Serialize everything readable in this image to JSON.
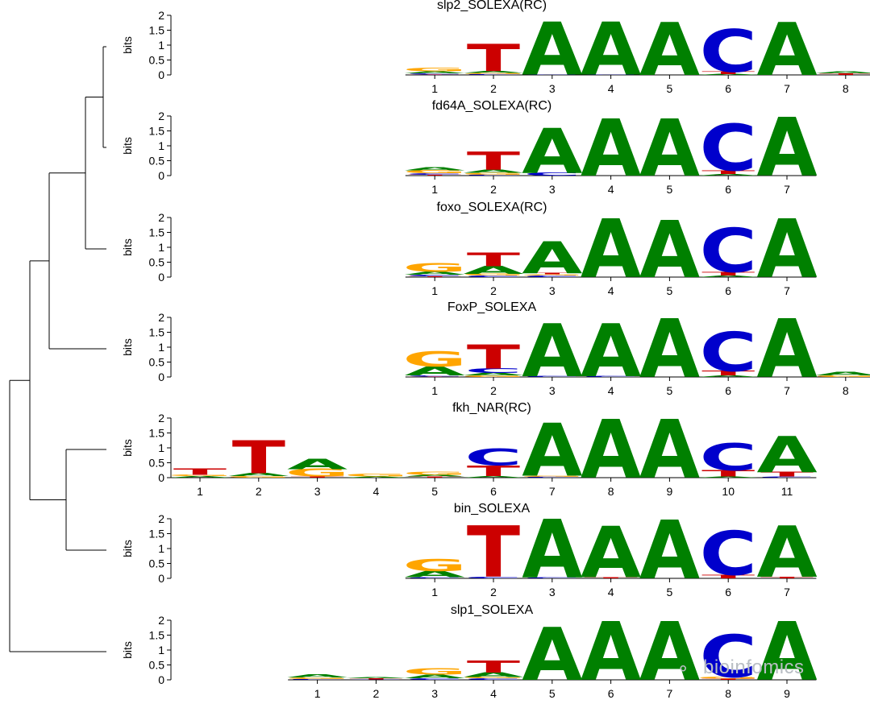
{
  "colors": {
    "A": "#008000",
    "C": "#0000cc",
    "G": "#ffa500",
    "T": "#cc0000"
  },
  "y_axis": {
    "label": "bits",
    "ticks": [
      "0",
      "0.5",
      "1",
      "1.5",
      "2"
    ],
    "range": [
      0,
      2
    ]
  },
  "watermark": {
    "text": "bioinfomics",
    "icon": "wechat-icon"
  },
  "tree": {
    "leaf_order": [
      "slp2_SOLEXA(RC)",
      "fd64A_SOLEXA(RC)",
      "foxo_SOLEXA(RC)",
      "FoxP_SOLEXA",
      "fkh_NAR(RC)",
      "bin_SOLEXA",
      "slp1_SOLEXA"
    ],
    "merges": [
      [
        0,
        1
      ],
      [
        0,
        2
      ],
      [
        0,
        3
      ],
      [
        4,
        5
      ],
      [
        0,
        4
      ],
      [
        0,
        6
      ]
    ]
  },
  "motifs": [
    {
      "name": "slp2_SOLEXA(RC)",
      "offset": 4,
      "positions": [
        {
          "label": "1",
          "letters": [
            [
              "T",
              0.02
            ],
            [
              "C",
              0.04
            ],
            [
              "A",
              0.06
            ],
            [
              "G",
              0.12
            ]
          ]
        },
        {
          "label": "2",
          "letters": [
            [
              "C",
              0.03
            ],
            [
              "G",
              0.04
            ],
            [
              "A",
              0.06
            ],
            [
              "T",
              0.9
            ]
          ]
        },
        {
          "label": "3",
          "letters": [
            [
              "C",
              0.02
            ],
            [
              "A",
              1.75
            ]
          ]
        },
        {
          "label": "4",
          "letters": [
            [
              "C",
              0.02
            ],
            [
              "A",
              1.75
            ]
          ]
        },
        {
          "label": "5",
          "letters": [
            [
              "A",
              1.75
            ]
          ]
        },
        {
          "label": "6",
          "letters": [
            [
              "A",
              0.03
            ],
            [
              "T",
              0.08
            ],
            [
              "C",
              1.4
            ]
          ]
        },
        {
          "label": "7",
          "letters": [
            [
              "A",
              1.75
            ]
          ]
        },
        {
          "label": "8",
          "letters": [
            [
              "T",
              0.05
            ],
            [
              "A",
              0.07
            ]
          ]
        }
      ]
    },
    {
      "name": "fd64A_SOLEXA(RC)",
      "offset": 4,
      "positions": [
        {
          "label": "1",
          "letters": [
            [
              "T",
              0.03
            ],
            [
              "C",
              0.05
            ],
            [
              "G",
              0.1
            ],
            [
              "A",
              0.1
            ]
          ]
        },
        {
          "label": "2",
          "letters": [
            [
              "C",
              0.03
            ],
            [
              "G",
              0.06
            ],
            [
              "A",
              0.1
            ],
            [
              "T",
              0.6
            ]
          ]
        },
        {
          "label": "3",
          "letters": [
            [
              "C",
              0.1
            ],
            [
              "A",
              1.5
            ]
          ]
        },
        {
          "label": "4",
          "letters": [
            [
              "A",
              1.9
            ]
          ]
        },
        {
          "label": "5",
          "letters": [
            [
              "A",
              1.9
            ]
          ]
        },
        {
          "label": "6",
          "letters": [
            [
              "A",
              0.05
            ],
            [
              "T",
              0.12
            ],
            [
              "C",
              1.55
            ]
          ]
        },
        {
          "label": "7",
          "letters": [
            [
              "A",
              1.95
            ]
          ]
        }
      ]
    },
    {
      "name": "foxo_SOLEXA(RC)",
      "offset": 4,
      "positions": [
        {
          "label": "1",
          "letters": [
            [
              "T",
              0.03
            ],
            [
              "C",
              0.05
            ],
            [
              "A",
              0.1
            ],
            [
              "G",
              0.3
            ]
          ]
        },
        {
          "label": "2",
          "letters": [
            [
              "C",
              0.05
            ],
            [
              "G",
              0.06
            ],
            [
              "A",
              0.25
            ],
            [
              "T",
              0.45
            ]
          ]
        },
        {
          "label": "3",
          "letters": [
            [
              "C",
              0.05
            ],
            [
              "G",
              0.04
            ],
            [
              "T",
              0.05
            ],
            [
              "A",
              1.05
            ]
          ]
        },
        {
          "label": "4",
          "letters": [
            [
              "A",
              1.95
            ]
          ]
        },
        {
          "label": "5",
          "letters": [
            [
              "A",
              1.9
            ]
          ]
        },
        {
          "label": "6",
          "letters": [
            [
              "A",
              0.05
            ],
            [
              "T",
              0.12
            ],
            [
              "C",
              1.45
            ]
          ]
        },
        {
          "label": "7",
          "letters": [
            [
              "A",
              1.95
            ]
          ]
        }
      ]
    },
    {
      "name": "FoxP_SOLEXA",
      "offset": 4,
      "positions": [
        {
          "label": "1",
          "letters": [
            [
              "T",
              0.02
            ],
            [
              "C",
              0.03
            ],
            [
              "A",
              0.3
            ],
            [
              "G",
              0.5
            ]
          ]
        },
        {
          "label": "2",
          "letters": [
            [
              "G",
              0.05
            ],
            [
              "A",
              0.08
            ],
            [
              "C",
              0.15
            ],
            [
              "T",
              0.8
            ]
          ]
        },
        {
          "label": "3",
          "letters": [
            [
              "C",
              0.03
            ],
            [
              "A",
              1.75
            ]
          ]
        },
        {
          "label": "4",
          "letters": [
            [
              "C",
              0.03
            ],
            [
              "A",
              1.75
            ]
          ]
        },
        {
          "label": "5",
          "letters": [
            [
              "A",
              1.95
            ]
          ]
        },
        {
          "label": "6",
          "letters": [
            [
              "A",
              0.05
            ],
            [
              "T",
              0.15
            ],
            [
              "C",
              1.3
            ]
          ]
        },
        {
          "label": "7",
          "letters": [
            [
              "A",
              1.95
            ]
          ]
        },
        {
          "label": "8",
          "letters": [
            [
              "G",
              0.05
            ],
            [
              "A",
              0.12
            ]
          ]
        }
      ]
    },
    {
      "name": "fkh_NAR(RC)",
      "offset": 0,
      "positions": [
        {
          "label": "1",
          "letters": [
            [
              "A",
              0.05
            ],
            [
              "G",
              0.05
            ],
            [
              "T",
              0.2
            ]
          ]
        },
        {
          "label": "2",
          "letters": [
            [
              "G",
              0.05
            ],
            [
              "A",
              0.1
            ],
            [
              "T",
              1.1
            ]
          ]
        },
        {
          "label": "3",
          "letters": [
            [
              "T",
              0.04
            ],
            [
              "G",
              0.25
            ],
            [
              "A",
              0.35
            ]
          ]
        },
        {
          "label": "4",
          "letters": [
            [
              "A",
              0.04
            ],
            [
              "G",
              0.08
            ]
          ]
        },
        {
          "label": "5",
          "letters": [
            [
              "T",
              0.04
            ],
            [
              "A",
              0.06
            ],
            [
              "G",
              0.1
            ]
          ]
        },
        {
          "label": "6",
          "letters": [
            [
              "A",
              0.05
            ],
            [
              "T",
              0.35
            ],
            [
              "C",
              0.55
            ]
          ]
        },
        {
          "label": "7",
          "letters": [
            [
              "C",
              0.03
            ],
            [
              "G",
              0.04
            ],
            [
              "A",
              1.75
            ]
          ]
        },
        {
          "label": "8",
          "letters": [
            [
              "A",
              1.95
            ]
          ]
        },
        {
          "label": "9",
          "letters": [
            [
              "A",
              1.95
            ]
          ]
        },
        {
          "label": "10",
          "letters": [
            [
              "A",
              0.04
            ],
            [
              "T",
              0.2
            ],
            [
              "C",
              0.9
            ]
          ]
        },
        {
          "label": "11",
          "letters": [
            [
              "C",
              0.04
            ],
            [
              "T",
              0.15
            ],
            [
              "A",
              1.2
            ]
          ]
        }
      ]
    },
    {
      "name": "bin_SOLEXA",
      "offset": 4,
      "positions": [
        {
          "label": "1",
          "letters": [
            [
              "C",
              0.04
            ],
            [
              "A",
              0.2
            ],
            [
              "G",
              0.4
            ]
          ]
        },
        {
          "label": "2",
          "letters": [
            [
              "C",
              0.05
            ],
            [
              "T",
              1.7
            ]
          ]
        },
        {
          "label": "3",
          "letters": [
            [
              "C",
              0.03
            ],
            [
              "A",
              1.95
            ]
          ]
        },
        {
          "label": "4",
          "letters": [
            [
              "T",
              0.04
            ],
            [
              "A",
              1.7
            ]
          ]
        },
        {
          "label": "5",
          "letters": [
            [
              "A",
              1.95
            ]
          ]
        },
        {
          "label": "6",
          "letters": [
            [
              "T",
              0.12
            ],
            [
              "C",
              1.45
            ]
          ]
        },
        {
          "label": "7",
          "letters": [
            [
              "T",
              0.05
            ],
            [
              "A",
              1.7
            ]
          ]
        }
      ]
    },
    {
      "name": "slp1_SOLEXA",
      "offset": 2,
      "positions": [
        {
          "label": "1",
          "letters": [
            [
              "C",
              0.03
            ],
            [
              "G",
              0.05
            ],
            [
              "A",
              0.1
            ]
          ]
        },
        {
          "label": "2",
          "letters": [
            [
              "C",
              0.02
            ],
            [
              "T",
              0.03
            ],
            [
              "A",
              0.04
            ]
          ]
        },
        {
          "label": "3",
          "letters": [
            [
              "C",
              0.05
            ],
            [
              "A",
              0.12
            ],
            [
              "G",
              0.2
            ]
          ]
        },
        {
          "label": "4",
          "letters": [
            [
              "C",
              0.05
            ],
            [
              "G",
              0.05
            ],
            [
              "A",
              0.15
            ],
            [
              "T",
              0.4
            ]
          ]
        },
        {
          "label": "5",
          "letters": [
            [
              "A",
              1.75
            ]
          ]
        },
        {
          "label": "6",
          "letters": [
            [
              "A",
              1.95
            ]
          ]
        },
        {
          "label": "7",
          "letters": [
            [
              "A",
              1.95
            ]
          ]
        },
        {
          "label": "8",
          "letters": [
            [
              "T",
              0.04
            ],
            [
              "G",
              0.06
            ],
            [
              "C",
              1.4
            ]
          ]
        },
        {
          "label": "9",
          "letters": [
            [
              "A",
              1.95
            ]
          ]
        }
      ]
    }
  ]
}
